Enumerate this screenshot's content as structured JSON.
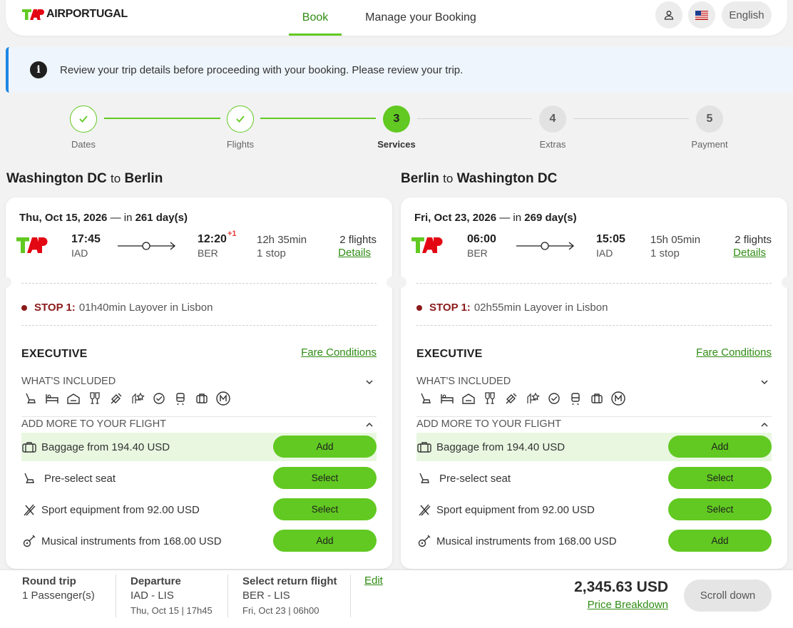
{
  "header": {
    "logo_text": "AIRPORTUGAL",
    "nav": {
      "book": "Book",
      "manage": "Manage your Booking"
    },
    "language": "English"
  },
  "banner": {
    "text": "Review your trip details before proceeding with your booking. Please review your trip."
  },
  "stepper": {
    "steps": [
      {
        "num": "",
        "label": "Dates",
        "state": "done"
      },
      {
        "num": "",
        "label": "Flights",
        "state": "done"
      },
      {
        "num": "3",
        "label": "Services",
        "state": "current"
      },
      {
        "num": "4",
        "label": "Extras",
        "state": "todo"
      },
      {
        "num": "5",
        "label": "Payment",
        "state": "todo"
      }
    ]
  },
  "outbound": {
    "from": "Washington DC",
    "to_word": "to",
    "to": "Berlin",
    "date": "Thu, Oct 15, 2026",
    "in_prefix": "— in",
    "days": "261 day(s)",
    "dep_time": "17:45",
    "dep_code": "IAD",
    "arr_time": "12:20",
    "arr_plus": "+1",
    "arr_code": "BER",
    "duration": "12h 35min",
    "stops": "1 stop",
    "flights": "2 flights",
    "details": "Details",
    "stop_label": "STOP 1:",
    "layover": "01h40min Layover in Lisbon",
    "cabin": "EXECUTIVE",
    "fare": "Fare Conditions",
    "included": "WHAT'S INCLUDED",
    "add_more": "ADD MORE TO YOUR FLIGHT",
    "services": [
      {
        "label": "Baggage  from 194.40 USD",
        "button": "Add"
      },
      {
        "label": "Pre-select seat",
        "button": "Select"
      },
      {
        "label": "Sport equipment  from 92.00 USD",
        "button": "Select"
      },
      {
        "label": "Musical instruments  from 168.00 USD",
        "button": "Add"
      }
    ]
  },
  "inbound": {
    "from": "Berlin",
    "to_word": "to",
    "to": "Washington DC",
    "date": "Fri, Oct 23, 2026",
    "in_prefix": "— in",
    "days": "269 day(s)",
    "dep_time": "06:00",
    "dep_code": "BER",
    "arr_time": "15:05",
    "arr_code": "IAD",
    "duration": "15h 05min",
    "stops": "1 stop",
    "flights": "2 flights",
    "details": "Details",
    "stop_label": "STOP 1:",
    "layover": "02h55min Layover in Lisbon",
    "cabin": "EXECUTIVE",
    "fare": "Fare Conditions",
    "included": "WHAT'S INCLUDED",
    "add_more": "ADD MORE TO YOUR FLIGHT",
    "services": [
      {
        "label": "Baggage  from 194.40 USD",
        "button": "Add"
      },
      {
        "label": "Pre-select seat",
        "button": "Select"
      },
      {
        "label": "Sport equipment  from 92.00 USD",
        "button": "Select"
      },
      {
        "label": "Musical instruments  from 168.00 USD",
        "button": "Add"
      }
    ]
  },
  "footer": {
    "trip_type": "Round trip",
    "passengers": "1 Passenger(s)",
    "departure_title": "Departure",
    "departure_route": "IAD - LIS",
    "departure_time": "Thu, Oct 15 | 17h45",
    "return_title": "Select return flight",
    "return_route": "BER - LIS",
    "return_time": "Fri, Oct 23 | 06h00",
    "edit": "Edit",
    "price": "2,345.63 USD",
    "breakdown": "Price Breakdown",
    "scroll": "Scroll down"
  },
  "colors": {
    "accent": "#61c921",
    "link": "#2f8c13",
    "tap_red": "#e30613",
    "stop_red": "#8b1a1a",
    "banner_border": "#1e88e5"
  }
}
